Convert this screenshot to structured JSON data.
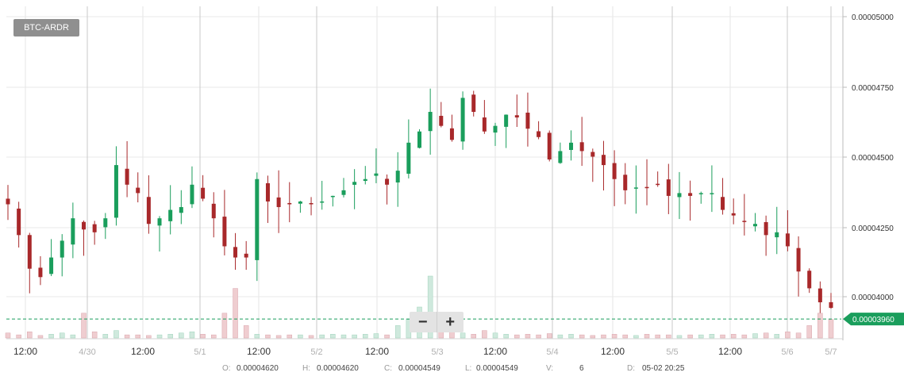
{
  "pair": "BTC-ARDR",
  "zoom": {
    "minus_label": "−",
    "plus_label": "+"
  },
  "current_price": "0.00003960",
  "ohlc": {
    "o_key": "O:",
    "o_val": "0.00004620",
    "h_key": "H:",
    "h_val": "0.00004620",
    "c_key": "C:",
    "c_val": "0.00004549",
    "l_key": "L:",
    "l_val": "0.00004549",
    "v_key": "V:",
    "v_val": "6",
    "d_key": "D:",
    "d_val": "05-02 20:25"
  },
  "colors": {
    "up": "#1a9e5c",
    "down": "#a8282a",
    "vol_up": "#cfe9dd",
    "vol_down": "#efcdd0",
    "price_tag": "#1a9e5c",
    "grid": "#e8e8e8"
  },
  "chart_data": {
    "type": "candlestick",
    "title": "BTC-ARDR",
    "y_ticks": [
      "0.00004000",
      "0.00004250",
      "0.00004500",
      "0.00004750",
      "0.00005000"
    ],
    "ylim": [
      3.96e-05,
      5e-05
    ],
    "x_ticks": [
      "12:00",
      "4/30",
      "12:00",
      "5/1",
      "12:00",
      "5/2",
      "12:00",
      "5/3",
      "12:00",
      "5/4",
      "12:00",
      "5/5",
      "12:00",
      "5/6",
      "5/7"
    ],
    "x_tick_is_day": [
      false,
      true,
      false,
      true,
      false,
      true,
      false,
      true,
      false,
      true,
      false,
      true,
      false,
      true,
      true
    ],
    "close_series": [
      4.33e-05,
      4.22e-05,
      4.1e-05,
      4.07e-05,
      4.14e-05,
      4.2e-05,
      4.28e-05,
      4.24e-05,
      4.23e-05,
      4.28e-05,
      4.47e-05,
      4.4e-05,
      4.37e-05,
      4.26e-05,
      4.28e-05,
      4.31e-05,
      4.32e-05,
      4.4e-05,
      4.35e-05,
      4.28e-05,
      4.18e-05,
      4.14e-05,
      4.14e-05,
      4.42e-05,
      4.34e-05,
      4.32e-05,
      4.33e-05,
      4.34e-05,
      4.33e-05,
      4.34e-05,
      4.36e-05,
      4.38e-05,
      4.41e-05,
      4.42e-05,
      4.44e-05,
      4.4e-05,
      4.45e-05,
      4.55e-05,
      4.59e-05,
      4.66e-05,
      4.61e-05,
      4.56e-05,
      4.71e-05,
      4.66e-05,
      4.59e-05,
      4.61e-05,
      4.65e-05,
      4.64e-05,
      4.6e-05,
      4.57e-05,
      4.49e-05,
      4.52e-05,
      4.55e-05,
      4.52e-05,
      4.5e-05,
      4.47e-05,
      4.42e-05,
      4.38e-05,
      4.39e-05,
      4.39e-05,
      4.4e-05,
      4.36e-05,
      4.37e-05,
      4.36e-05,
      4.37e-05,
      4.37e-05,
      4.31e-05,
      4.29e-05,
      4.27e-05,
      4.26e-05,
      4.22e-05,
      4.23e-05,
      4.18e-05,
      4.09e-05,
      4.03e-05,
      3.98e-05,
      3.96e-05
    ],
    "volume_series": [
      0.08,
      0.05,
      0.1,
      0.04,
      0.06,
      0.08,
      0.05,
      0.4,
      0.1,
      0.06,
      0.12,
      0.05,
      0.05,
      0.04,
      0.05,
      0.06,
      0.08,
      0.1,
      0.06,
      0.05,
      0.4,
      0.8,
      0.2,
      0.06,
      0.05,
      0.04,
      0.05,
      0.05,
      0.04,
      0.05,
      0.06,
      0.05,
      0.05,
      0.06,
      0.07,
      0.05,
      0.2,
      0.3,
      0.5,
      1.0,
      0.3,
      0.1,
      0.08,
      0.06,
      0.12,
      0.08,
      0.06,
      0.05,
      0.06,
      0.05,
      0.07,
      0.05,
      0.06,
      0.05,
      0.04,
      0.05,
      0.06,
      0.05,
      0.04,
      0.06,
      0.05,
      0.05,
      0.04,
      0.05,
      0.05,
      0.06,
      0.05,
      0.06,
      0.05,
      0.07,
      0.08,
      0.06,
      0.1,
      0.08,
      0.2,
      0.4,
      0.3
    ],
    "grid": true,
    "volume_subplot": true
  }
}
